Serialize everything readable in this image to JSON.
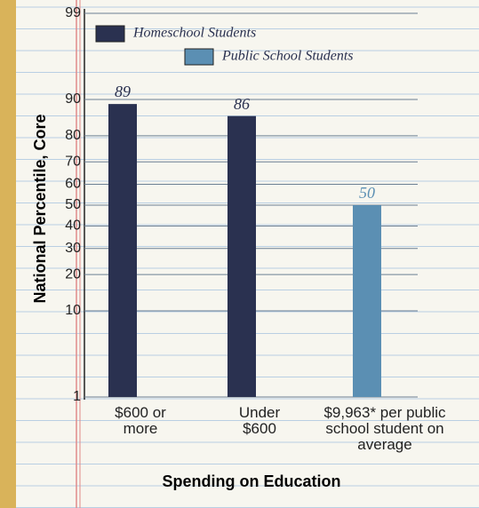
{
  "chart_data": {
    "type": "bar",
    "y_scale": "probit",
    "grid": true,
    "legend": "top-left",
    "x_label": "Spending on Education",
    "y_label": "National Percentile, Core",
    "categories": [
      "$600 or more",
      "Under $600",
      "$9,963* per public school student on average"
    ],
    "series": [
      {
        "name": "Homeschool Students",
        "color": "#2a3150",
        "values": [
          89,
          86,
          null
        ]
      },
      {
        "name": "Public School Students",
        "color": "#5b8fb3",
        "values": [
          null,
          null,
          50
        ]
      }
    ],
    "ylim": [
      1,
      99
    ],
    "yticks": [
      1,
      10,
      20,
      30,
      40,
      50,
      60,
      70,
      80,
      90,
      99
    ]
  }
}
